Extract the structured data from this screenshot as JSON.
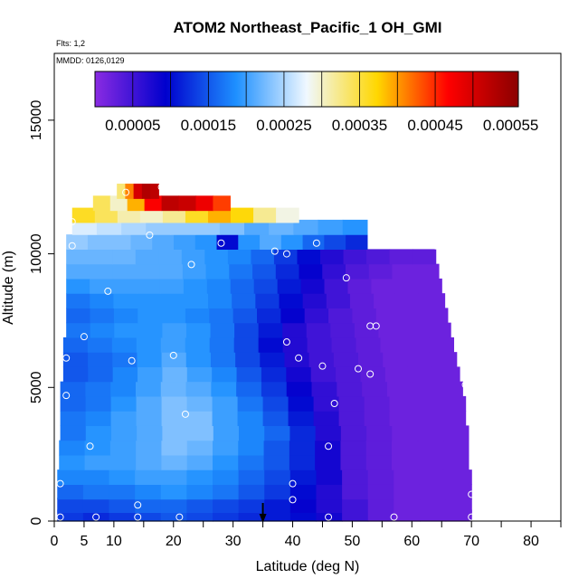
{
  "chart_data": {
    "type": "heatmap",
    "title": "ATOM2 Northeast_Pacific_1 OH_GMI",
    "flights_text": "Flts: 1,2",
    "dates_text": "MMDD: 0126,0129",
    "xlabel": "Latitude (deg N)",
    "ylabel": "Altitude (m)",
    "xlim": [
      0,
      85
    ],
    "ylim": [
      0,
      17500
    ],
    "x_ticks": [
      0,
      5,
      10,
      20,
      30,
      40,
      50,
      60,
      70,
      80
    ],
    "x_minor_ticks": [
      15,
      25,
      35,
      45,
      55,
      65,
      75,
      85
    ],
    "y_ticks": [
      0,
      5000,
      10000,
      15000
    ],
    "colorbar": {
      "min": 0.0,
      "max": 0.00056,
      "ticks": [
        "0.00005",
        "0.00015",
        "0.00025",
        "0.00035",
        "0.00045",
        "0.00055"
      ],
      "tick_values": [
        5e-05,
        0.00015,
        0.00025,
        0.00035,
        0.00045,
        0.00055
      ],
      "colors": [
        "#8a2be2",
        "#0000cd",
        "#1e90ff",
        "#f0f8ff",
        "#ffd700",
        "#ff0000",
        "#8b0000"
      ]
    },
    "grid": false,
    "legend_placement": "top",
    "marker": {
      "latitude": 35,
      "altitude": 0
    },
    "rows": [
      {
        "alt": 150,
        "x0": 0.5,
        "x1": 70,
        "values": [
          0.00013,
          0.00012,
          0.00013,
          0.00014,
          0.00015,
          0.00014,
          0.00013,
          0.00012,
          0.00011,
          0.0001,
          8e-05,
          5e-05,
          3e-05,
          2e-05,
          2e-05,
          2e-05
        ]
      },
      {
        "alt": 600,
        "x0": 0.5,
        "x1": 70,
        "values": [
          0.00014,
          0.00014,
          0.00015,
          0.00016,
          0.00016,
          0.00015,
          0.00014,
          0.00013,
          0.00011,
          9e-05,
          7e-05,
          5e-05,
          3e-05,
          2e-05,
          2e-05,
          2e-05
        ]
      },
      {
        "alt": 1100,
        "x0": 0.5,
        "x1": 70,
        "values": [
          0.00016,
          0.00017,
          0.00017,
          0.00018,
          0.00019,
          0.00018,
          0.00017,
          0.00015,
          0.00013,
          0.0001,
          7e-05,
          4e-05,
          3e-05,
          2e-05,
          2e-05,
          2e-05
        ]
      },
      {
        "alt": 1650,
        "x0": 0.5,
        "x1": 70,
        "values": [
          0.00018,
          0.00018,
          0.00019,
          0.0002,
          0.0002,
          0.00019,
          0.00018,
          0.00016,
          0.00014,
          0.00011,
          8e-05,
          4e-05,
          3e-05,
          2e-05,
          2e-05,
          2e-05
        ]
      },
      {
        "alt": 2200,
        "x0": 0.8,
        "x1": 69.5,
        "values": [
          0.00019,
          0.0002,
          0.0002,
          0.00021,
          0.00022,
          0.00021,
          0.00019,
          0.00017,
          0.00015,
          0.00012,
          8e-05,
          4e-05,
          3e-05,
          2e-05,
          2e-05,
          2e-05
        ]
      },
      {
        "alt": 2750,
        "x0": 0.8,
        "x1": 69.5,
        "values": [
          0.00018,
          0.00019,
          0.0002,
          0.00021,
          0.00023,
          0.00022,
          0.0002,
          0.00018,
          0.00015,
          0.00012,
          8e-05,
          4e-05,
          3e-05,
          2e-05,
          2e-05,
          2e-05
        ]
      },
      {
        "alt": 3300,
        "x0": 1,
        "x1": 69.5,
        "values": [
          0.00017,
          0.00019,
          0.0002,
          0.00021,
          0.00023,
          0.00023,
          0.0002,
          0.00018,
          0.00016,
          0.00012,
          7e-05,
          4e-05,
          3e-05,
          2e-05,
          2e-05,
          2e-05
        ]
      },
      {
        "alt": 3850,
        "x0": 1,
        "x1": 69,
        "values": [
          0.00017,
          0.00018,
          0.0002,
          0.00021,
          0.00023,
          0.00023,
          0.0002,
          0.00018,
          0.00015,
          0.00011,
          7e-05,
          4e-05,
          3e-05,
          2e-05,
          2e-05,
          2e-05
        ]
      },
      {
        "alt": 4400,
        "x0": 1,
        "x1": 69,
        "values": [
          0.00016,
          0.00017,
          0.00019,
          0.00021,
          0.00023,
          0.00022,
          0.0002,
          0.00017,
          0.00014,
          0.0001,
          6e-05,
          4e-05,
          3e-05,
          2e-05,
          2e-05,
          2e-05
        ]
      },
      {
        "alt": 4950,
        "x0": 1,
        "x1": 68.5,
        "values": [
          0.00016,
          0.00017,
          0.00018,
          0.0002,
          0.00022,
          0.00021,
          0.00019,
          0.00016,
          0.00013,
          9e-05,
          6e-05,
          4e-05,
          3e-05,
          2e-05,
          2e-05,
          2e-05
        ]
      },
      {
        "alt": 5500,
        "x0": 1.5,
        "x1": 68,
        "values": [
          0.00015,
          0.00016,
          0.00018,
          0.0002,
          0.00022,
          0.0002,
          0.00018,
          0.00015,
          0.00012,
          8e-05,
          5e-05,
          4e-05,
          3e-05,
          2e-05,
          2e-05,
          2e-05
        ]
      },
      {
        "alt": 6050,
        "x0": 1.5,
        "x1": 67.5,
        "values": [
          0.00015,
          0.00016,
          0.00017,
          0.00019,
          0.00021,
          0.00019,
          0.00017,
          0.00014,
          0.00011,
          7e-05,
          5e-05,
          4e-05,
          3e-05,
          2e-05,
          2e-05,
          2e-05
        ]
      },
      {
        "alt": 6600,
        "x0": 1.5,
        "x1": 67,
        "values": [
          0.00016,
          0.00017,
          0.00018,
          0.00019,
          0.0002,
          0.00019,
          0.00017,
          0.00014,
          0.0001,
          7e-05,
          5e-05,
          4e-05,
          3e-05,
          2e-05,
          2e-05,
          2e-05
        ]
      },
      {
        "alt": 7150,
        "x0": 2,
        "x1": 66.5,
        "values": [
          0.00017,
          0.00018,
          0.00019,
          0.00019,
          0.0002,
          0.00019,
          0.00017,
          0.00014,
          0.00011,
          7e-05,
          5e-05,
          4e-05,
          3e-05,
          2e-05,
          2e-05,
          2e-05
        ]
      },
      {
        "alt": 7700,
        "x0": 2,
        "x1": 66,
        "values": [
          0.00016,
          0.00017,
          0.00018,
          0.00019,
          0.00019,
          0.00018,
          0.00017,
          0.00015,
          0.00012,
          9e-05,
          6e-05,
          4e-05,
          3e-05,
          2e-05,
          2e-05,
          2e-05
        ]
      },
      {
        "alt": 8250,
        "x0": 2,
        "x1": 65.5,
        "values": [
          0.00017,
          0.00018,
          0.00019,
          0.00019,
          0.00019,
          0.00019,
          0.00018,
          0.00016,
          0.00013,
          0.0001,
          7e-05,
          5e-05,
          3e-05,
          2e-05,
          2e-05,
          2e-05
        ]
      },
      {
        "alt": 8800,
        "x0": 2,
        "x1": 65,
        "values": [
          0.00019,
          0.0002,
          0.0002,
          0.0002,
          0.0002,
          0.00019,
          0.00018,
          0.00016,
          0.00014,
          0.00011,
          8e-05,
          5e-05,
          3e-05,
          2e-05,
          2e-05,
          2e-05
        ]
      },
      {
        "alt": 9350,
        "x0": 2,
        "x1": 64.5,
        "values": [
          0.00021,
          0.00021,
          0.00021,
          0.00021,
          0.00021,
          0.0002,
          0.00019,
          0.00017,
          0.00015,
          0.00012,
          9e-05,
          6e-05,
          4e-05,
          3e-05,
          2e-05,
          2e-05
        ]
      },
      {
        "alt": 9900,
        "x0": 2,
        "x1": 64,
        "values": [
          0.00022,
          0.00022,
          0.00022,
          0.00021,
          0.00021,
          0.0002,
          0.00019,
          0.00018,
          0.00016,
          0.00013,
          0.0001,
          7e-05,
          5e-05,
          4e-05,
          3e-05,
          3e-05
        ]
      },
      {
        "alt": 10450,
        "x0": 2,
        "x1": 52.5,
        "values": [
          0.00024,
          0.00023,
          0.00023,
          0.00022,
          0.00021,
          0.0002,
          0.00019,
          0.0001,
          0.00019,
          0.00021,
          0.00019,
          0.00016,
          0.00014,
          0.00012
        ]
      },
      {
        "alt": 11000,
        "x0": 3,
        "x1": 52.5,
        "values": [
          0.00027,
          0.00026,
          0.00025,
          0.00024,
          0.00024,
          0.00024,
          0.00023,
          0.00021,
          0.00022,
          0.00021,
          0.0002,
          0.00019
        ]
      },
      {
        "alt": 11450,
        "x0": 3,
        "x1": 41,
        "values": [
          0.00036,
          0.00034,
          0.00031,
          0.0003,
          0.00032,
          0.00036,
          0.00039,
          0.00037,
          0.00032,
          0.00029
        ]
      },
      {
        "alt": 11900,
        "x0": 6.5,
        "x1": 29.5,
        "values": [
          0.00034,
          0.0003,
          0.00039,
          0.00047,
          0.00052,
          0.00051,
          0.00048,
          0.00044
        ]
      },
      {
        "alt": 12350,
        "x0": 10.5,
        "x1": 17.5,
        "values": [
          0.00033,
          0.00041,
          0.0005,
          0.00053,
          0.00052
        ]
      }
    ],
    "samples": [
      [
        1,
        150
      ],
      [
        7,
        150
      ],
      [
        14,
        150
      ],
      [
        21,
        150
      ],
      [
        46,
        150
      ],
      [
        57,
        150
      ],
      [
        70,
        150
      ],
      [
        70,
        1000
      ],
      [
        14,
        600
      ],
      [
        40,
        800
      ],
      [
        40,
        1400
      ],
      [
        1,
        1400
      ],
      [
        6,
        2800
      ],
      [
        46,
        2800
      ],
      [
        22,
        4000
      ],
      [
        47,
        4400
      ],
      [
        2,
        4700
      ],
      [
        69,
        5100
      ],
      [
        13,
        6000
      ],
      [
        20,
        6200
      ],
      [
        41,
        6100
      ],
      [
        45,
        5800
      ],
      [
        51,
        5700
      ],
      [
        53,
        5500
      ],
      [
        2,
        6100
      ],
      [
        5,
        6900
      ],
      [
        39,
        6700
      ],
      [
        53,
        7300
      ],
      [
        54,
        7300
      ],
      [
        9,
        8600
      ],
      [
        49,
        9100
      ],
      [
        23,
        9600
      ],
      [
        37,
        10100
      ],
      [
        39,
        10000
      ],
      [
        28,
        10400
      ],
      [
        44,
        10400
      ],
      [
        3,
        10300
      ],
      [
        64,
        10300
      ],
      [
        16,
        10700
      ],
      [
        3,
        11200
      ],
      [
        18,
        12500
      ],
      [
        12,
        12300
      ]
    ]
  }
}
